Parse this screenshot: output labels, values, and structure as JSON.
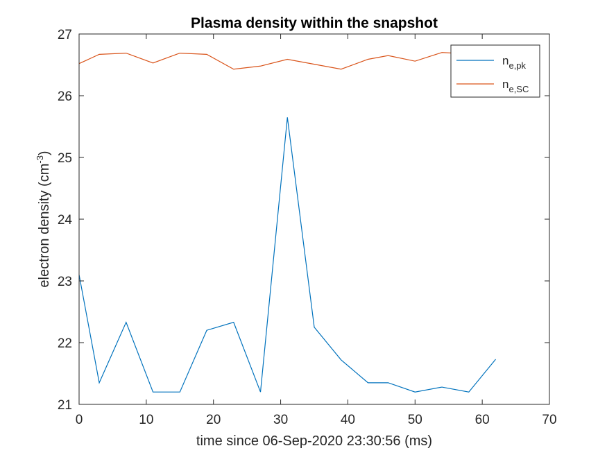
{
  "chart_data": {
    "type": "line",
    "title": "Plasma density within the snapshot",
    "xlabel": "time since 06-Sep-2020 23:30:56 (ms)",
    "ylabel_main": "electron density (cm",
    "ylabel_sup": "-3",
    "ylabel_close": ")",
    "xlim": [
      0,
      70
    ],
    "ylim": [
      21,
      27
    ],
    "xticks": [
      0,
      10,
      20,
      30,
      40,
      50,
      60,
      70
    ],
    "yticks": [
      21,
      22,
      23,
      24,
      25,
      26,
      27
    ],
    "grid": false,
    "legend_position": "top-right",
    "series": [
      {
        "name_main": "n",
        "name_sub": "e,pk",
        "color": "#0072BD",
        "x": [
          0,
          3,
          7,
          11,
          15,
          19,
          23,
          27,
          31,
          35,
          39,
          43,
          46,
          50,
          54,
          58,
          62
        ],
        "y": [
          23.1,
          21.35,
          22.33,
          21.2,
          21.2,
          22.2,
          22.33,
          21.2,
          25.65,
          22.25,
          21.72,
          21.35,
          21.35,
          21.2,
          21.28,
          21.2,
          21.73
        ]
      },
      {
        "name_main": "n",
        "name_sub": "e,SC",
        "color": "#D95319",
        "x": [
          0,
          3,
          7,
          11,
          15,
          19,
          23,
          27,
          31,
          35,
          39,
          43,
          46,
          50,
          54,
          58,
          62
        ],
        "y": [
          26.52,
          26.67,
          26.69,
          26.53,
          26.69,
          26.67,
          26.43,
          26.48,
          26.59,
          26.51,
          26.43,
          26.59,
          26.65,
          26.56,
          26.7,
          26.68,
          26.7
        ]
      }
    ]
  }
}
